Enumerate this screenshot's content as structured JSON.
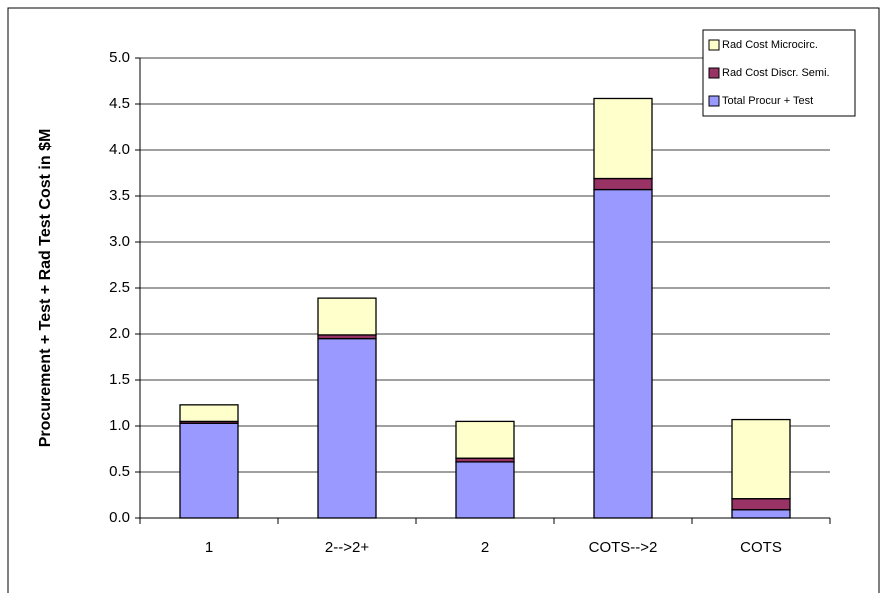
{
  "chart_data": {
    "type": "stacked_bar",
    "y_label": "Procurement + Test + Rad Test Cost in $M",
    "categories": [
      "1",
      "2-->2+",
      "2",
      "COTS-->2",
      "COTS"
    ],
    "series": [
      {
        "name": "Total Procur + Test",
        "color": "#9999ff",
        "values": [
          1.03,
          1.95,
          0.61,
          3.57,
          0.09
        ]
      },
      {
        "name": "Rad Cost Discr. Semi.",
        "color": "#993366",
        "values": [
          0.02,
          0.04,
          0.04,
          0.12,
          0.12
        ]
      },
      {
        "name": "Rad Cost Microcirc.",
        "color": "#ffffcc",
        "values": [
          0.18,
          0.4,
          0.4,
          0.87,
          0.86
        ]
      }
    ],
    "ylim": [
      0,
      5
    ],
    "yticks": [
      {
        "value": 0,
        "label": "0.0"
      },
      0.5,
      {
        "value": 1,
        "label": "1.0"
      },
      1.5,
      {
        "value": 2,
        "label": "2.0"
      },
      2.5,
      {
        "value": 3,
        "label": "3.0"
      },
      3.5,
      {
        "value": 4,
        "label": "4.0"
      },
      4.5,
      {
        "value": 5,
        "label": "5.0"
      }
    ],
    "grid": true,
    "legend": "upper right"
  }
}
